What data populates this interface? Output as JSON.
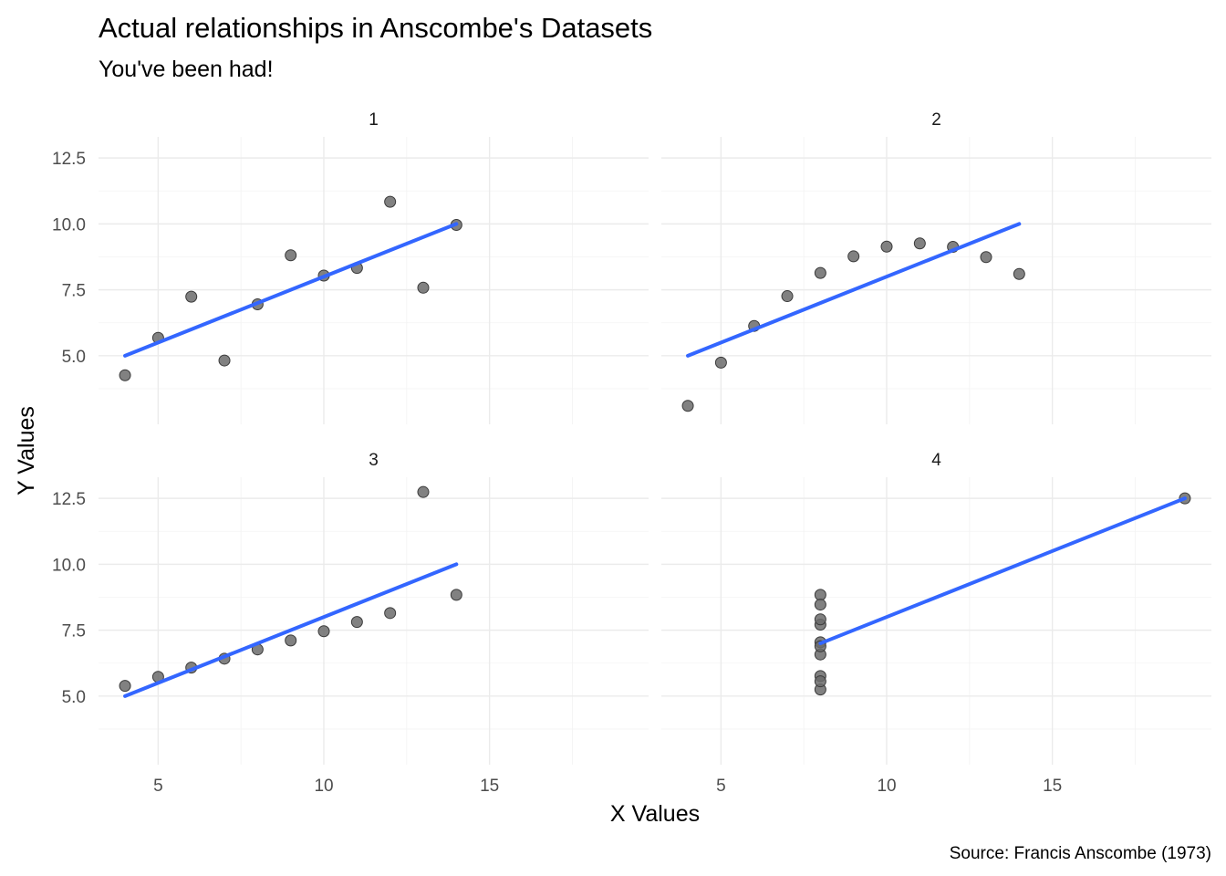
{
  "chart_data": {
    "type": "scatter",
    "title": "Actual relationships in Anscombe's Datasets",
    "subtitle": "You've been had!",
    "xlabel": "X Values",
    "ylabel": "Y Values",
    "caption": "Source: Francis Anscombe (1973)",
    "xlim": [
      3.2,
      19.8
    ],
    "ylim": [
      2.4,
      13.3
    ],
    "xticks": [
      5,
      10,
      15
    ],
    "xtick_labels": [
      "5",
      "10",
      "15"
    ],
    "yticks": [
      5,
      7.5,
      10,
      12.5
    ],
    "ytick_labels": [
      "5.0",
      "7.5",
      "10.0",
      "12.5"
    ],
    "grid": true,
    "point_color": "#595959",
    "line_color": "#3366ff",
    "panels": [
      {
        "label": "1",
        "x": [
          10,
          8,
          13,
          9,
          11,
          14,
          6,
          4,
          12,
          7,
          5
        ],
        "y": [
          8.04,
          6.95,
          7.58,
          8.81,
          8.33,
          9.96,
          7.24,
          4.26,
          10.84,
          4.82,
          5.68
        ],
        "fit": {
          "x": [
            4,
            14
          ],
          "y": [
            5.0,
            10.0
          ]
        }
      },
      {
        "label": "2",
        "x": [
          10,
          8,
          13,
          9,
          11,
          14,
          6,
          4,
          12,
          7,
          5
        ],
        "y": [
          9.14,
          8.14,
          8.74,
          8.77,
          9.26,
          8.1,
          6.13,
          3.1,
          9.13,
          7.26,
          4.74
        ],
        "fit": {
          "x": [
            4,
            14
          ],
          "y": [
            5.0,
            10.0
          ]
        }
      },
      {
        "label": "3",
        "x": [
          10,
          8,
          13,
          9,
          11,
          14,
          6,
          4,
          12,
          7,
          5
        ],
        "y": [
          7.46,
          6.77,
          12.74,
          7.11,
          7.81,
          8.84,
          6.08,
          5.39,
          8.15,
          6.42,
          5.73
        ],
        "fit": {
          "x": [
            4,
            14
          ],
          "y": [
            5.0,
            10.0
          ]
        }
      },
      {
        "label": "4",
        "x": [
          8,
          8,
          8,
          8,
          8,
          8,
          8,
          19,
          8,
          8,
          8
        ],
        "y": [
          6.58,
          5.76,
          7.71,
          8.84,
          8.47,
          7.04,
          5.25,
          12.5,
          5.56,
          7.91,
          6.89
        ],
        "fit": {
          "x": [
            8,
            19
          ],
          "y": [
            7.0,
            12.5
          ]
        }
      }
    ]
  }
}
